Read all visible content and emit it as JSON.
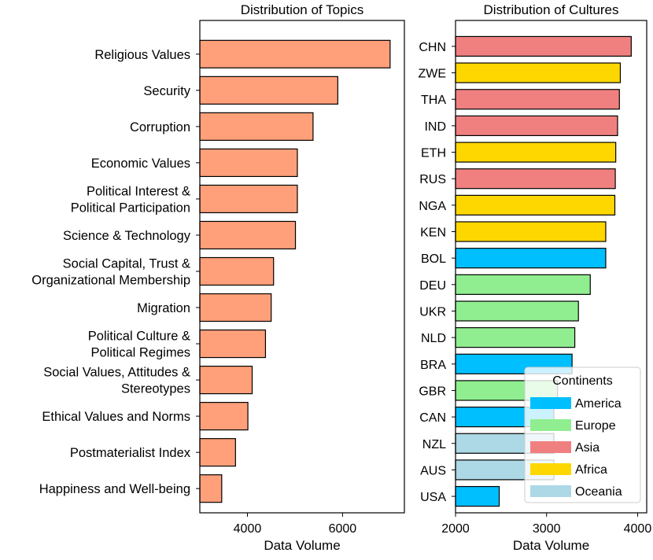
{
  "colors": {
    "topics_bar": "#FFA07A",
    "America": "#00BFFF",
    "Europe": "#90EE90",
    "Asia": "#F08080",
    "Africa": "#FFD700",
    "Oceania": "#ADD8E6",
    "edge": "#000000"
  },
  "chart_data": [
    {
      "type": "bar",
      "orientation": "horizontal",
      "title": "Distribution of Topics",
      "xlabel": "Data Volume",
      "ylabel": "",
      "xlim": [
        3000,
        7300
      ],
      "xticks": [
        4000,
        6000
      ],
      "xtick_labels": [
        "4000",
        "6000"
      ],
      "categories": [
        [
          "Religious Values"
        ],
        [
          "Security"
        ],
        [
          "Corruption"
        ],
        [
          "Economic Values"
        ],
        [
          "Political Interest &",
          "Political Participation"
        ],
        [
          "Science & Technology"
        ],
        [
          "Social Capital, Trust &",
          "Organizational Membership"
        ],
        [
          "Migration"
        ],
        [
          "Political Culture &",
          "Political Regimes"
        ],
        [
          "Social Values, Attitudes &",
          "Stereotypes"
        ],
        [
          "Ethical Values and Norms"
        ],
        [
          "Postmaterialist Index"
        ],
        [
          "Happiness and Well-being"
        ]
      ],
      "values": [
        7000,
        5900,
        5380,
        5050,
        5050,
        5010,
        4550,
        4500,
        4380,
        4100,
        4010,
        3750,
        3460
      ]
    },
    {
      "type": "bar",
      "orientation": "horizontal",
      "title": "Distribution of Cultures",
      "xlabel": "Data Volume",
      "ylabel": "",
      "xlim": [
        2000,
        4100
      ],
      "xticks": [
        2000,
        3000,
        4000
      ],
      "xtick_labels": [
        "2000",
        "3000",
        "4000"
      ],
      "categories": [
        "CHN",
        "ZWE",
        "THA",
        "IND",
        "ETH",
        "RUS",
        "NGA",
        "KEN",
        "BOL",
        "DEU",
        "UKR",
        "NLD",
        "BRA",
        "GBR",
        "CAN",
        "NZL",
        "AUS",
        "USA"
      ],
      "values": [
        3930,
        3810,
        3800,
        3780,
        3760,
        3755,
        3750,
        3650,
        3650,
        3480,
        3350,
        3310,
        3280,
        3120,
        3080,
        3080,
        3080,
        2480
      ],
      "continents": [
        "Asia",
        "Africa",
        "Asia",
        "Asia",
        "Africa",
        "Asia",
        "Africa",
        "Africa",
        "America",
        "Europe",
        "Europe",
        "Europe",
        "America",
        "Europe",
        "America",
        "Oceania",
        "Oceania",
        "America"
      ],
      "legend": {
        "title": "Continents",
        "location": "lower-right",
        "entries": [
          "America",
          "Europe",
          "Asia",
          "Africa",
          "Oceania"
        ]
      }
    }
  ]
}
